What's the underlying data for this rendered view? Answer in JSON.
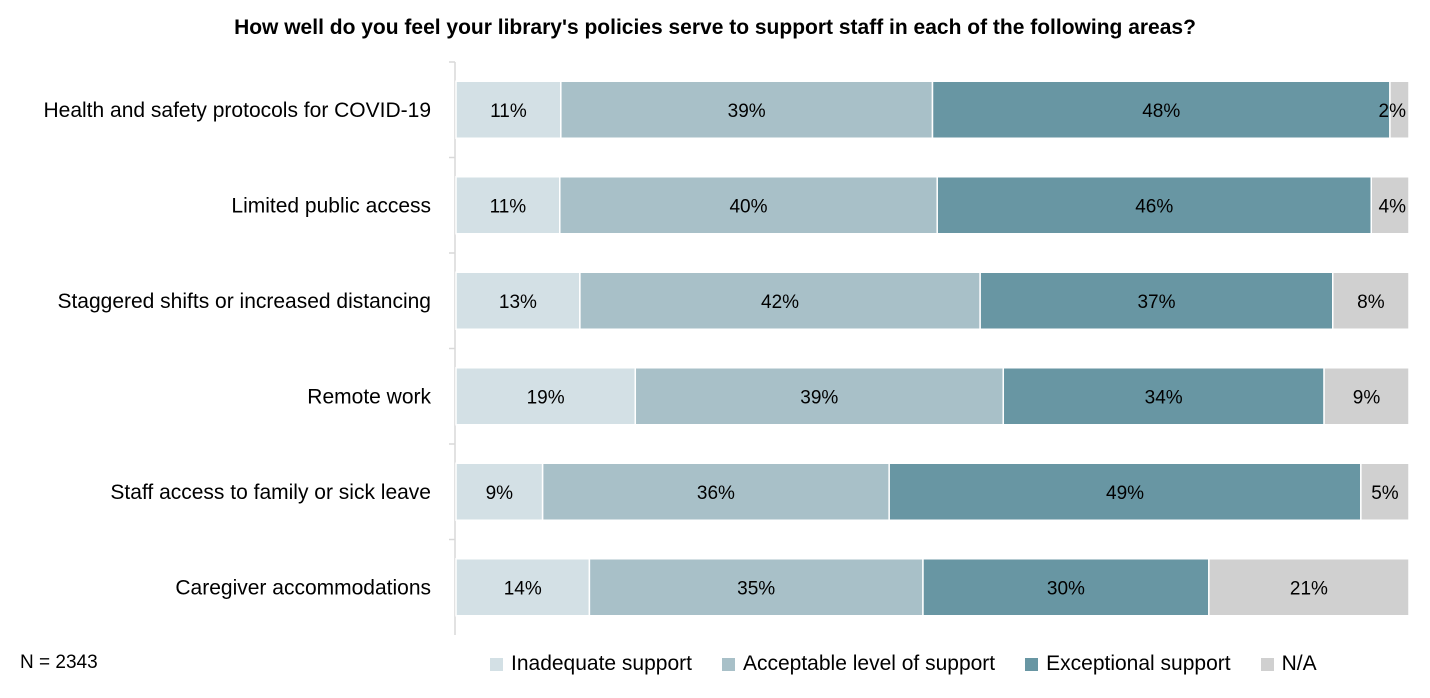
{
  "chart_data": {
    "type": "bar",
    "orientation": "horizontal",
    "stacked": true,
    "title": "How well do you feel your library's policies serve to support staff in each of the following areas?",
    "categories": [
      "Health and safety protocols for COVID-19",
      "Limited public access",
      "Staggered shifts or increased distancing",
      "Remote work",
      "Staff access to family or sick leave",
      "Caregiver accommodations"
    ],
    "series": [
      {
        "name": "Inadequate support",
        "color": "#d3e0e5",
        "values": [
          11,
          11,
          13,
          19,
          9,
          14
        ]
      },
      {
        "name": "Acceptable level of support",
        "color": "#a8c0c8",
        "values": [
          39,
          40,
          42,
          39,
          36,
          35
        ]
      },
      {
        "name": "Exceptional support",
        "color": "#6896a3",
        "values": [
          48,
          46,
          37,
          34,
          49,
          30
        ]
      },
      {
        "name": "N/A",
        "color": "#d0d0d0",
        "values": [
          2,
          4,
          8,
          9,
          5,
          21
        ]
      }
    ],
    "value_suffix": "%",
    "legend_position": "bottom-right",
    "grid": false
  },
  "note": "N = 2343"
}
